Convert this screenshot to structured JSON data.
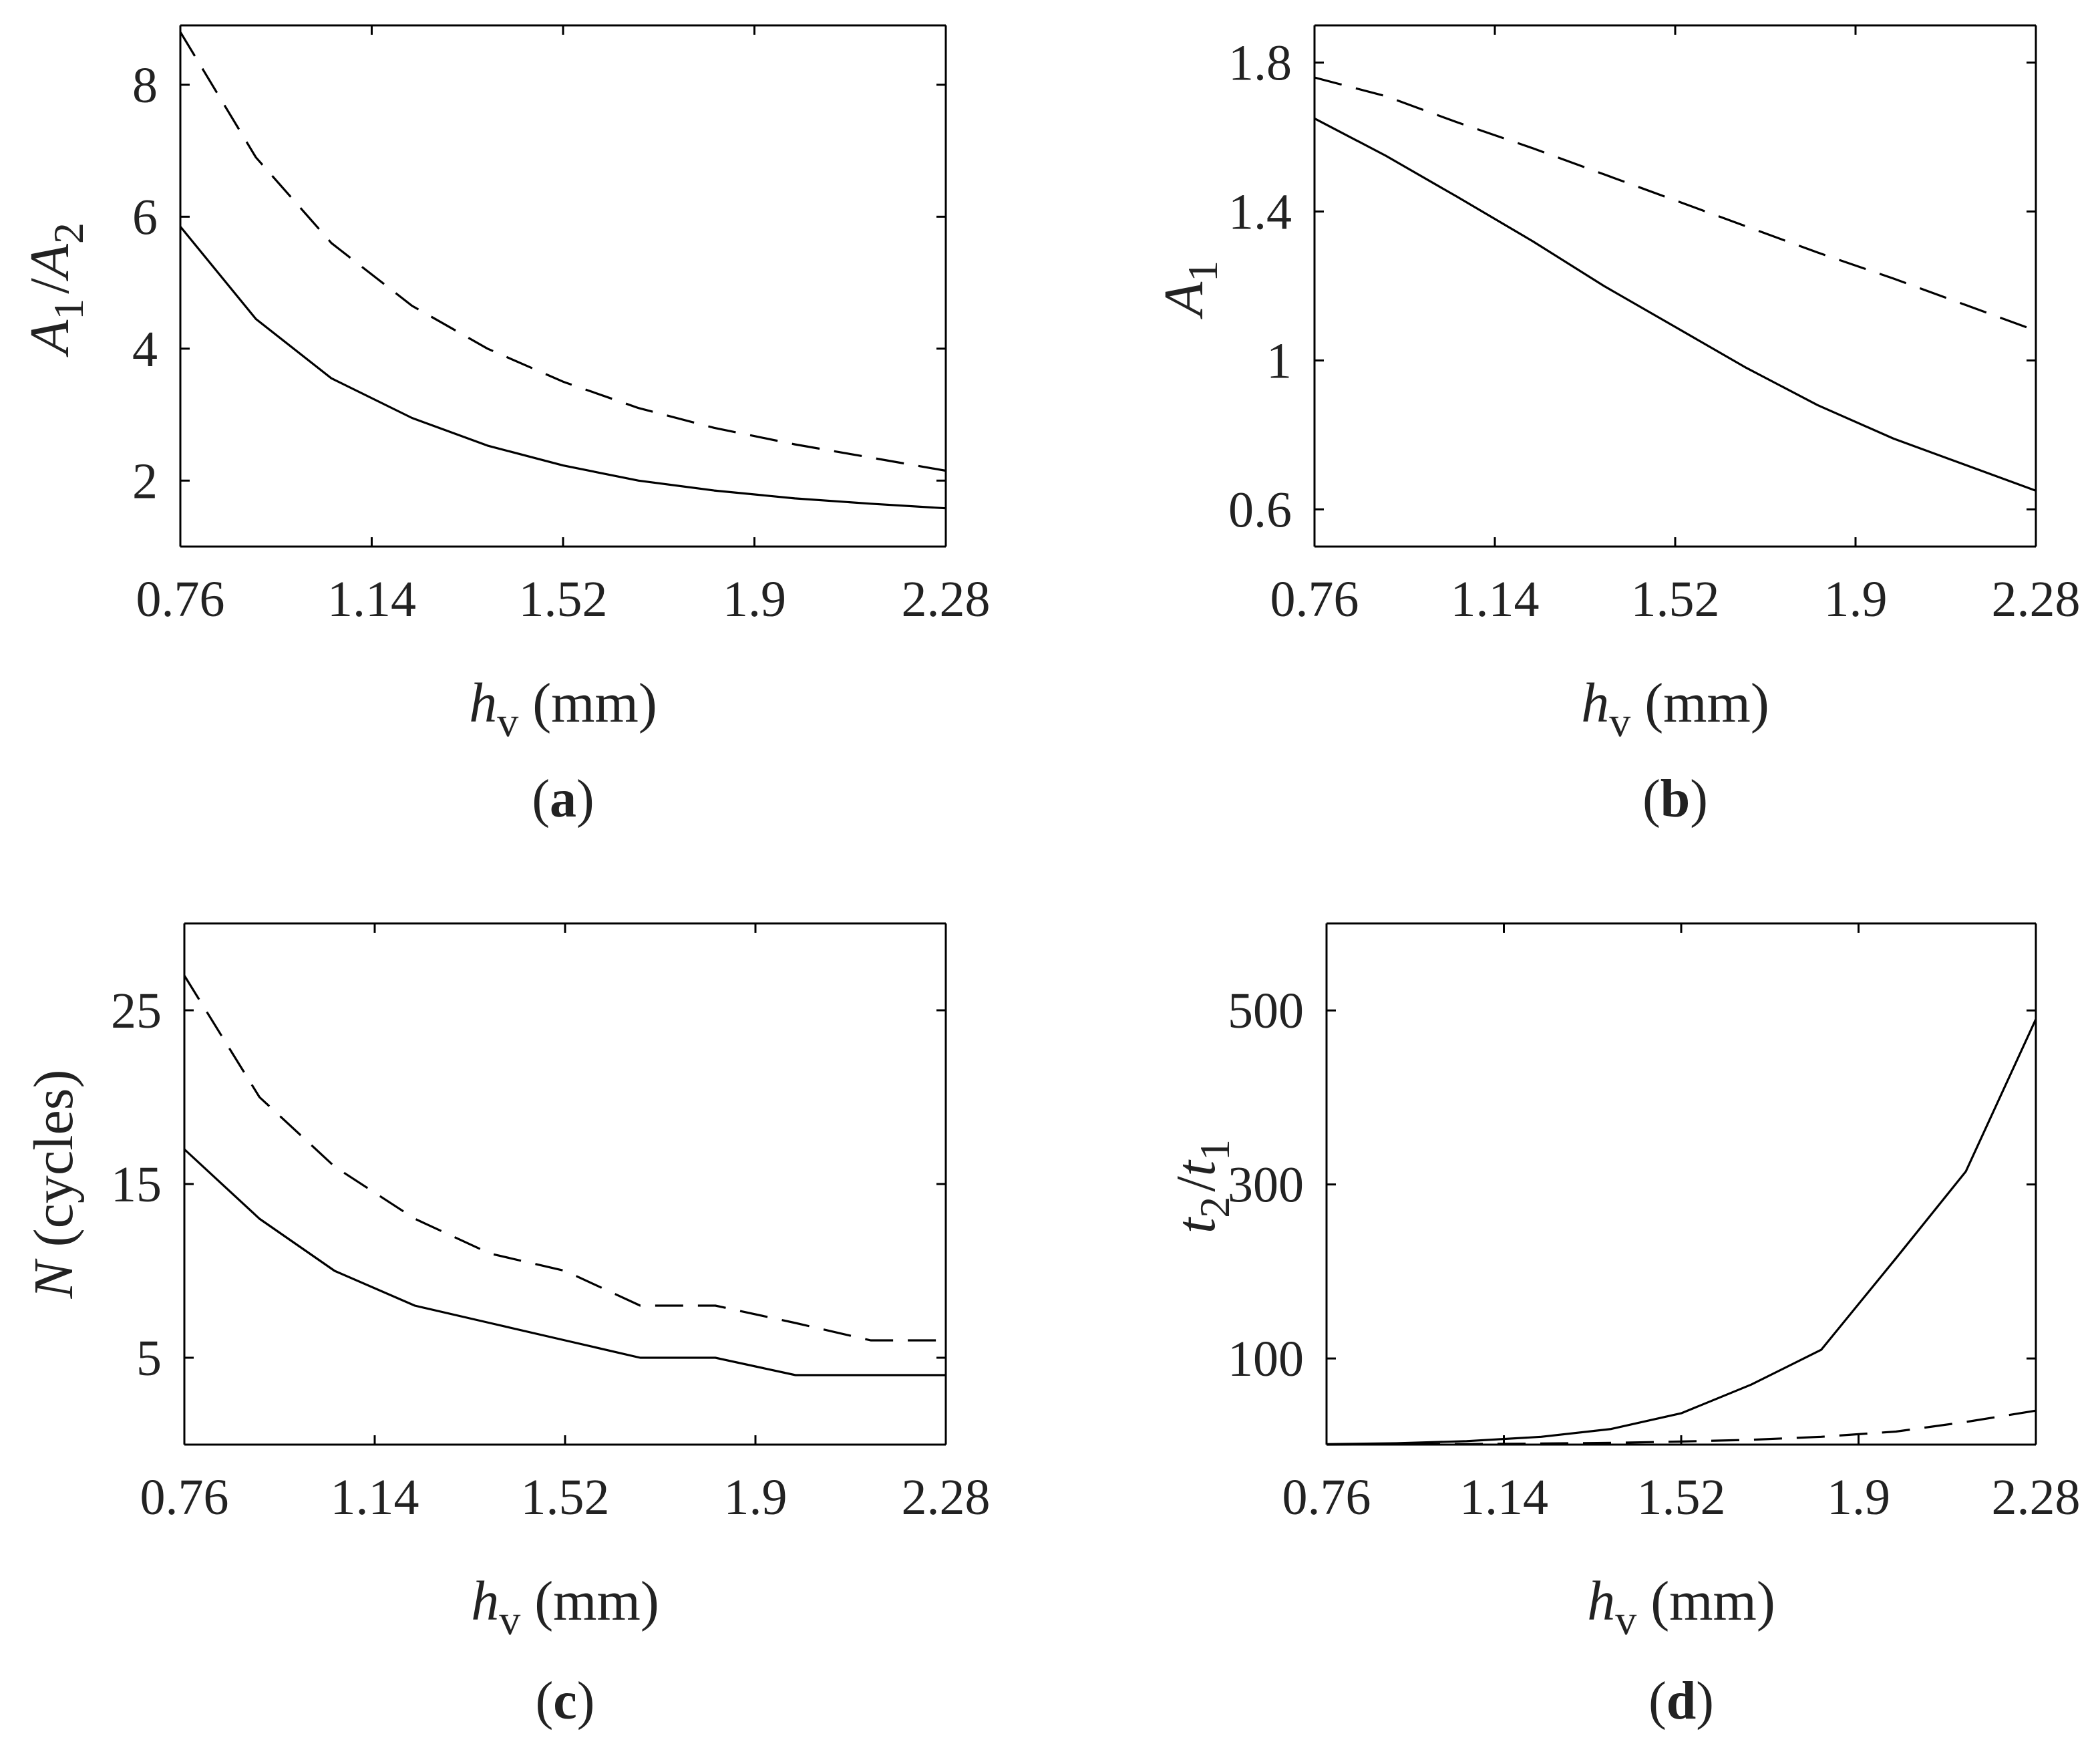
{
  "figure": {
    "background": "#ffffff",
    "line_color": "#000000",
    "text_color": "#222222"
  },
  "chart_data": [
    {
      "id": "a",
      "type": "line",
      "panel_label": "a",
      "xlabel": {
        "symbol": "h",
        "sub": "v",
        "unit": "(mm)"
      },
      "ylabel": {
        "parts": [
          {
            "t": "A",
            "s": "1"
          },
          {
            "t": "/",
            "s": ""
          },
          {
            "t": "A",
            "s": "2"
          }
        ]
      },
      "xlim": [
        0.76,
        2.28
      ],
      "ylim": [
        1.0,
        8.9
      ],
      "xticks": [
        0.76,
        1.14,
        1.52,
        1.9,
        2.28
      ],
      "xtick_labels": [
        "0.76",
        "1.14",
        "1.52",
        "1.9",
        "2.28"
      ],
      "yticks": [
        2,
        4,
        6,
        8
      ],
      "ytick_labels": [
        "2",
        "4",
        "6",
        "8"
      ],
      "series": [
        {
          "name": "solid",
          "style": "solid",
          "x": [
            0.76,
            0.91,
            1.06,
            1.22,
            1.37,
            1.52,
            1.67,
            1.82,
            1.98,
            2.13,
            2.28
          ],
          "y": [
            5.85,
            4.45,
            3.55,
            2.95,
            2.53,
            2.23,
            2.0,
            1.85,
            1.73,
            1.65,
            1.58
          ]
        },
        {
          "name": "dashed",
          "style": "dashed",
          "x": [
            0.76,
            0.91,
            1.06,
            1.22,
            1.37,
            1.52,
            1.67,
            1.82,
            1.98,
            2.13,
            2.28
          ],
          "y": [
            8.8,
            6.9,
            5.6,
            4.65,
            4.0,
            3.5,
            3.1,
            2.8,
            2.55,
            2.35,
            2.15
          ]
        }
      ]
    },
    {
      "id": "b",
      "type": "line",
      "panel_label": "b",
      "xlabel": {
        "symbol": "h",
        "sub": "v",
        "unit": "(mm)"
      },
      "ylabel": {
        "parts": [
          {
            "t": "A",
            "s": "1"
          }
        ]
      },
      "xlim": [
        0.76,
        2.28
      ],
      "ylim": [
        0.5,
        1.9
      ],
      "xticks": [
        0.76,
        1.14,
        1.52,
        1.9,
        2.28
      ],
      "xtick_labels": [
        "0.76",
        "1.14",
        "1.52",
        "1.9",
        "2.28"
      ],
      "yticks": [
        0.6,
        1.0,
        1.4,
        1.8
      ],
      "ytick_labels": [
        "0.6",
        "1",
        "1.4",
        "1.8"
      ],
      "series": [
        {
          "name": "solid",
          "style": "solid",
          "x": [
            0.76,
            0.91,
            1.06,
            1.22,
            1.37,
            1.52,
            1.67,
            1.82,
            1.98,
            2.13,
            2.28
          ],
          "y": [
            1.65,
            1.55,
            1.44,
            1.32,
            1.2,
            1.09,
            0.98,
            0.88,
            0.79,
            0.72,
            0.65
          ]
        },
        {
          "name": "dashed",
          "style": "dashed",
          "x": [
            0.76,
            0.91,
            1.06,
            1.22,
            1.37,
            1.52,
            1.67,
            1.82,
            1.98,
            2.13,
            2.28
          ],
          "y": [
            1.76,
            1.71,
            1.64,
            1.57,
            1.5,
            1.43,
            1.36,
            1.29,
            1.22,
            1.15,
            1.08
          ]
        }
      ]
    },
    {
      "id": "c",
      "type": "line",
      "panel_label": "c",
      "xlabel": {
        "symbol": "h",
        "sub": "v",
        "unit": "(mm)"
      },
      "ylabel": {
        "parts": [
          {
            "t": "N",
            "s": ""
          },
          {
            "t": " (cycles)",
            "s": ""
          }
        ]
      },
      "xlim": [
        0.76,
        2.28
      ],
      "ylim": [
        0,
        30
      ],
      "xticks": [
        0.76,
        1.14,
        1.52,
        1.9,
        2.28
      ],
      "xtick_labels": [
        "0.76",
        "1.14",
        "1.52",
        "1.9",
        "2.28"
      ],
      "yticks": [
        5,
        15,
        25
      ],
      "ytick_labels": [
        "5",
        "15",
        "25"
      ],
      "series": [
        {
          "name": "solid",
          "style": "solid",
          "x": [
            0.76,
            0.91,
            1.06,
            1.22,
            1.37,
            1.52,
            1.67,
            1.82,
            1.98,
            2.13,
            2.28
          ],
          "y": [
            17,
            13,
            10,
            8,
            7,
            6,
            5,
            5,
            4,
            4,
            4
          ]
        },
        {
          "name": "dashed",
          "style": "dashed",
          "x": [
            0.76,
            0.91,
            1.06,
            1.22,
            1.37,
            1.52,
            1.67,
            1.82,
            1.98,
            2.13,
            2.28
          ],
          "y": [
            27,
            20,
            16,
            13,
            11,
            10,
            8,
            8,
            7,
            6,
            6
          ]
        }
      ]
    },
    {
      "id": "d",
      "type": "line",
      "panel_label": "d",
      "xlabel": {
        "symbol": "h",
        "sub": "v",
        "unit": "(mm)"
      },
      "ylabel": {
        "parts": [
          {
            "t": "t",
            "s": "2"
          },
          {
            "t": "/",
            "s": ""
          },
          {
            "t": "t",
            "s": "1"
          }
        ]
      },
      "xlim": [
        0.76,
        2.28
      ],
      "ylim": [
        1,
        600
      ],
      "xticks": [
        0.76,
        1.14,
        1.52,
        1.9,
        2.28
      ],
      "xtick_labels": [
        "0.76",
        "1.14",
        "1.52",
        "1.9",
        "2.28"
      ],
      "yticks": [
        100,
        300,
        500
      ],
      "ytick_labels": [
        "100",
        "300",
        "500"
      ],
      "series": [
        {
          "name": "solid",
          "style": "solid",
          "x": [
            0.76,
            0.91,
            1.06,
            1.22,
            1.37,
            1.52,
            1.67,
            1.82,
            1.98,
            2.13,
            2.28
          ],
          "y": [
            1.5,
            2.5,
            5,
            10,
            19,
            37,
            70,
            110,
            215,
            315,
            490
          ]
        },
        {
          "name": "dashed",
          "style": "dashed",
          "x": [
            0.76,
            0.91,
            1.06,
            1.22,
            1.37,
            1.52,
            1.67,
            1.82,
            1.98,
            2.13,
            2.28
          ],
          "y": [
            1,
            1.2,
            1.6,
            2.2,
            3,
            4.5,
            6.5,
            10,
            16,
            27,
            40
          ]
        }
      ]
    }
  ]
}
